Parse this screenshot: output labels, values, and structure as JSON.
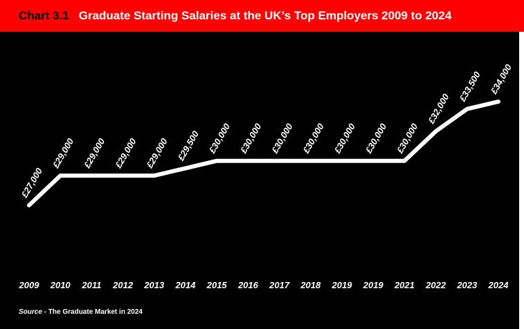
{
  "header": {
    "chart_label": "Chart 3.1",
    "title": "Graduate Starting Salaries at the UK’s Top Employers 2009 to 2024"
  },
  "source": {
    "prefix": "Source",
    "text": " - The Graduate Market in 2024"
  },
  "colors": {
    "header_bg": "#ff0000",
    "panel_bg": "#000000",
    "line": "#ffffff",
    "text": "#ffffff"
  },
  "chart_data": {
    "type": "line",
    "title": "Graduate Starting Salaries at the UK’s Top Employers 2009 to 2024",
    "categories": [
      "2009",
      "2010",
      "2011",
      "2012",
      "2013",
      "2014",
      "2015",
      "2016",
      "2017",
      "2018",
      "2019",
      "2019",
      "2021",
      "2022",
      "2023",
      "2024"
    ],
    "values": [
      27000,
      29000,
      29000,
      29000,
      29000,
      29500,
      30000,
      30000,
      30000,
      30000,
      30000,
      30000,
      30000,
      32000,
      33500,
      34000
    ],
    "data_labels": [
      "£27,000",
      "£29,000",
      "£29,000",
      "£29,000",
      "£29,000",
      "£29,500",
      "£30,000",
      "£30,000",
      "£30,000",
      "£30,000",
      "£30,000",
      "£30,000",
      "£30,000",
      "£32,000",
      "£33,500",
      "£34,000"
    ],
    "xlabel": "",
    "ylabel": "",
    "ylim": [
      27000,
      34000
    ],
    "grid": false,
    "legend": "none"
  }
}
